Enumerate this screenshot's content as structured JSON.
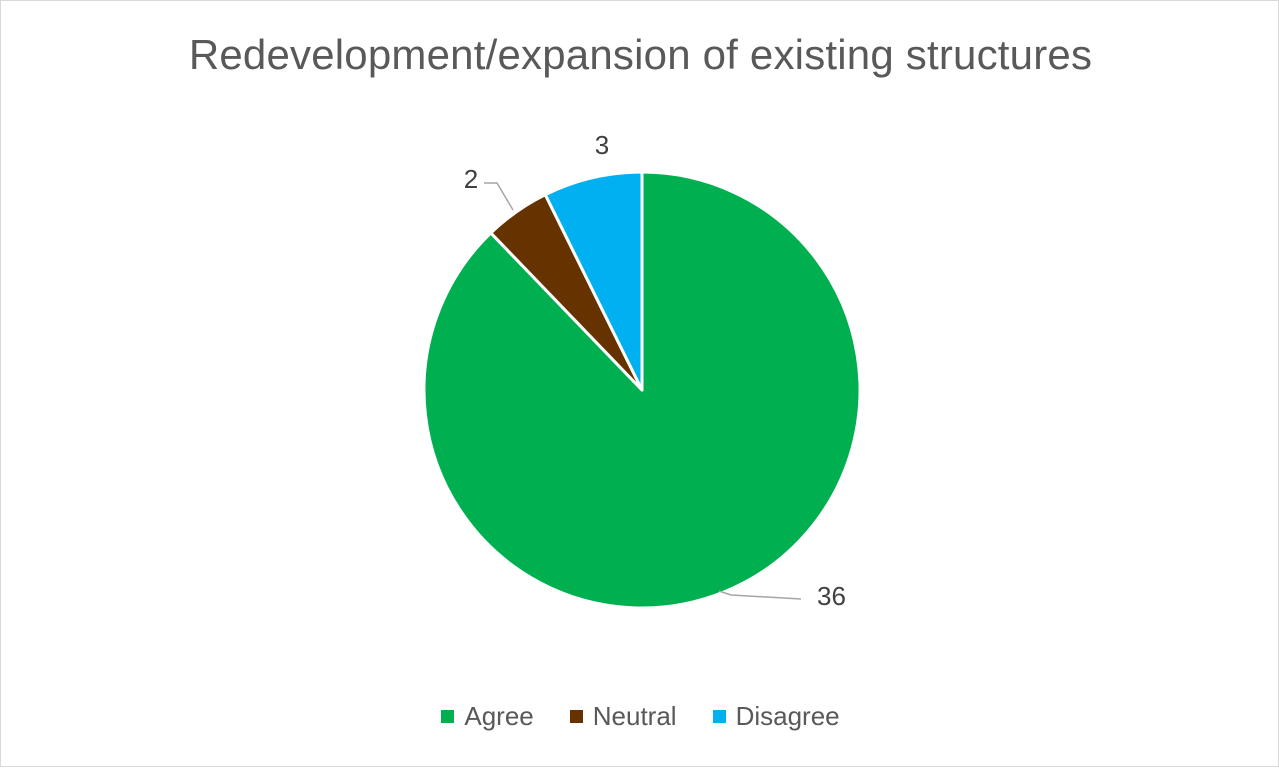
{
  "chart_data": {
    "type": "pie",
    "title": "Redevelopment/expansion of existing structures",
    "legend_position": "bottom",
    "slices": [
      {
        "name": "Agree",
        "value": 36,
        "color": "#00b050",
        "label": "36"
      },
      {
        "name": "Neutral",
        "value": 2,
        "color": "#663300",
        "label": "2"
      },
      {
        "name": "Disagree",
        "value": 3,
        "color": "#00b0f0",
        "label": "3"
      }
    ]
  }
}
